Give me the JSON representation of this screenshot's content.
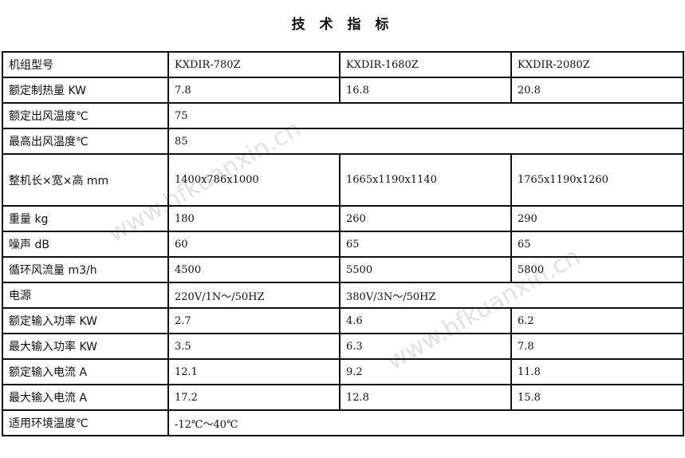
{
  "title": "技 术 指 标",
  "watermark": "www.hfkuanxin.cn",
  "rows": [
    {
      "label": "机组型号",
      "cells": [
        "KXDIR-780Z",
        "KXDIR-1680Z",
        "KXDIR-2080Z"
      ]
    },
    {
      "label": "额定制热量 KW",
      "cells": [
        "7.8",
        "16.8",
        "20.8"
      ]
    },
    {
      "label": "额定出风温度℃",
      "cells": [
        "75"
      ]
    },
    {
      "label": "最高出风温度℃",
      "cells": [
        "85"
      ]
    },
    {
      "label": "整机长×宽×高 mm",
      "cells": [
        "1400x786x1000",
        "1665x1190x1140",
        "1765x1190x1260"
      ]
    },
    {
      "label": "重量 kg",
      "cells": [
        "180",
        "260",
        "290"
      ]
    },
    {
      "label": "噪声 dB",
      "cells": [
        "60",
        "65",
        "65"
      ]
    },
    {
      "label": "循环风流量 m3/h",
      "cells": [
        "4500",
        "5500",
        "5800"
      ]
    },
    {
      "label": "电源",
      "cells": [
        "220V/1N～/50HZ",
        "380V/3N～/50HZ"
      ]
    },
    {
      "label": "额定输入功率 KW",
      "cells": [
        "2.7",
        "4.6",
        "6.2"
      ]
    },
    {
      "label": "最大输入功率 KW",
      "cells": [
        "3.5",
        "6.3",
        "7.8"
      ]
    },
    {
      "label": "额定输入电流 A",
      "cells": [
        "12.1",
        "9.2",
        "11.8"
      ]
    },
    {
      "label": "最大输入电流 A",
      "cells": [
        "17.2",
        "12.8",
        "15.8"
      ]
    },
    {
      "label": "适用环境温度℃",
      "cells": [
        "-12℃～40℃"
      ]
    }
  ]
}
